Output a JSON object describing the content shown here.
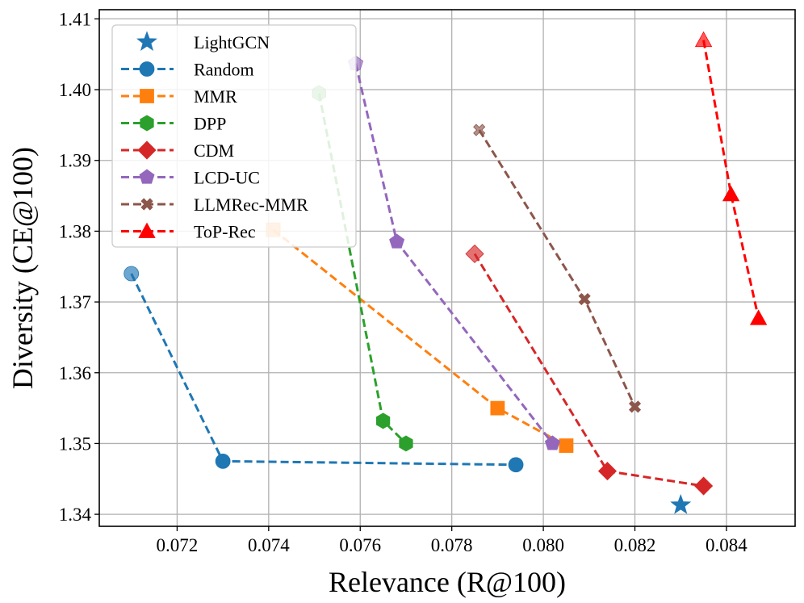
{
  "chart_data": {
    "type": "scatter",
    "xlabel": "Relevance (R@100)",
    "ylabel": "Diversity (CE@100)",
    "xlim": [
      0.0703,
      0.0855
    ],
    "ylim": [
      1.3383,
      1.4113
    ],
    "x_ticks": [
      "0.072",
      "0.074",
      "0.076",
      "0.078",
      "0.080",
      "0.082",
      "0.084"
    ],
    "x_tick_values": [
      0.072,
      0.074,
      0.076,
      0.078,
      0.08,
      0.082,
      0.084
    ],
    "y_ticks": [
      "1.34",
      "1.35",
      "1.36",
      "1.37",
      "1.38",
      "1.39",
      "1.40",
      "1.41"
    ],
    "y_tick_values": [
      1.34,
      1.35,
      1.36,
      1.37,
      1.38,
      1.39,
      1.4,
      1.41
    ],
    "grid": true,
    "legend_position": "top-left",
    "series": [
      {
        "name": "LightGCN",
        "color": "#1f77b4",
        "marker": "star",
        "line": false,
        "x": [
          0.083
        ],
        "y": [
          1.3413
        ]
      },
      {
        "name": "Random",
        "color": "#1f77b4",
        "marker": "circle",
        "line": true,
        "x": [
          0.071,
          0.073,
          0.0794
        ],
        "y": [
          1.374,
          1.3475,
          1.347
        ]
      },
      {
        "name": "MMR",
        "color": "#ff7f0e",
        "marker": "square",
        "line": true,
        "x": [
          0.0741,
          0.079,
          0.0805
        ],
        "y": [
          1.3802,
          1.355,
          1.3497
        ]
      },
      {
        "name": "DPP",
        "color": "#2ca02c",
        "marker": "hexagon",
        "line": true,
        "x": [
          0.0751,
          0.0765,
          0.077
        ],
        "y": [
          1.3995,
          1.3532,
          1.35
        ]
      },
      {
        "name": "CDM",
        "color": "#d62728",
        "marker": "diamond",
        "line": true,
        "x": [
          0.0785,
          0.0814,
          0.0835
        ],
        "y": [
          1.3768,
          1.3461,
          1.344
        ]
      },
      {
        "name": "LCD-UC",
        "color": "#9467bd",
        "marker": "pentagon",
        "line": true,
        "x": [
          0.0759,
          0.0768,
          0.0802
        ],
        "y": [
          1.4037,
          1.3785,
          1.35
        ]
      },
      {
        "name": "LLMRec-MMR",
        "color": "#8c564b",
        "marker": "x",
        "line": true,
        "x": [
          0.0786,
          0.0809,
          0.082
        ],
        "y": [
          1.3943,
          1.3704,
          1.3552
        ]
      },
      {
        "name": "ToP-Rec",
        "color": "#ff0000",
        "marker": "triangle",
        "line": true,
        "x": [
          0.0835,
          0.0841,
          0.0847
        ],
        "y": [
          1.407,
          1.3852,
          1.3677
        ]
      }
    ]
  }
}
